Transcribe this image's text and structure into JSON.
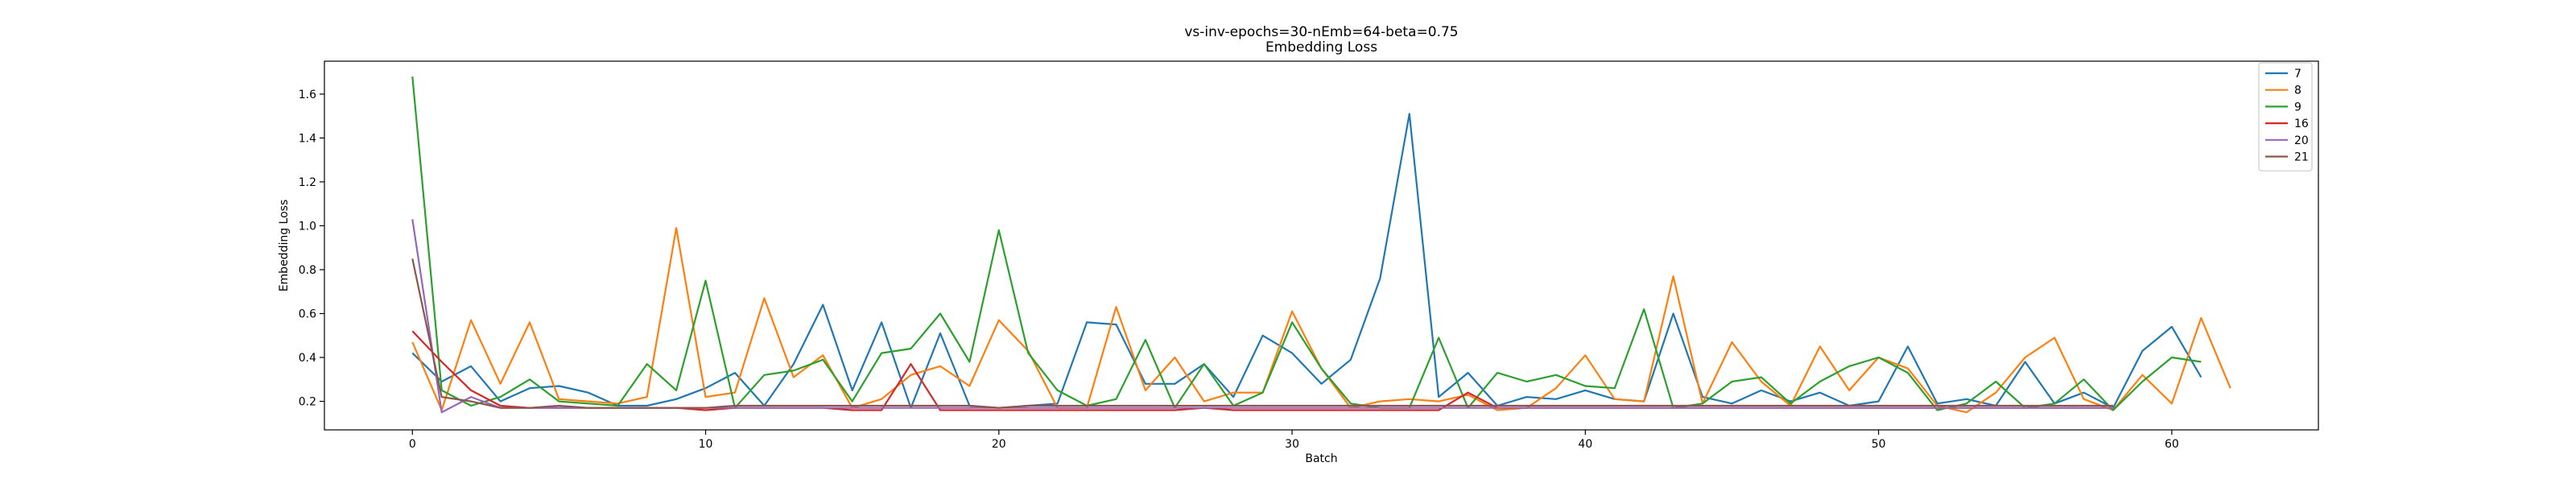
{
  "chart_data": {
    "type": "line",
    "title": "vs-inv-epochs=30-nEmb=64-beta=0.75",
    "subtitle": "Embedding Loss",
    "xlabel": "Batch",
    "ylabel": "Embedding Loss",
    "xlim": [
      -3,
      65
    ],
    "ylim": [
      0.07,
      1.75
    ],
    "xticks": [
      0,
      10,
      20,
      30,
      40,
      50,
      60
    ],
    "yticks": [
      0.2,
      0.4,
      0.6,
      0.8,
      1.0,
      1.2,
      1.4,
      1.6
    ],
    "ytick_labels": [
      "0.2",
      "0.4",
      "0.6",
      "0.8",
      "1.0",
      "1.2",
      "1.4",
      "1.6"
    ],
    "legend_position": "top-right",
    "grid": false,
    "series": [
      {
        "name": "7",
        "color": "#1f77b4",
        "values": [
          0.42,
          0.29,
          0.36,
          0.2,
          0.26,
          0.27,
          0.24,
          0.18,
          0.18,
          0.21,
          0.26,
          0.33,
          0.18,
          0.37,
          0.64,
          0.25,
          0.56,
          0.17,
          0.51,
          0.18,
          0.17,
          0.18,
          0.19,
          0.56,
          0.55,
          0.28,
          0.28,
          0.37,
          0.22,
          0.5,
          0.42,
          0.28,
          0.39,
          0.76,
          1.51,
          0.22,
          0.33,
          0.18,
          0.22,
          0.21,
          0.25,
          0.21,
          0.2,
          0.6,
          0.22,
          0.19,
          0.25,
          0.2,
          0.24,
          0.18,
          0.2,
          0.45,
          0.19,
          0.21,
          0.18,
          0.38,
          0.19,
          0.24,
          0.17,
          0.43,
          0.54,
          0.31
        ]
      },
      {
        "name": "8",
        "color": "#ff7f0e",
        "values": [
          0.47,
          0.16,
          0.57,
          0.28,
          0.56,
          0.21,
          0.2,
          0.19,
          0.22,
          0.99,
          0.22,
          0.24,
          0.67,
          0.31,
          0.41,
          0.17,
          0.21,
          0.32,
          0.36,
          0.27,
          0.57,
          0.43,
          0.17,
          0.17,
          0.63,
          0.25,
          0.4,
          0.2,
          0.24,
          0.24,
          0.61,
          0.35,
          0.17,
          0.2,
          0.21,
          0.2,
          0.23,
          0.16,
          0.17,
          0.26,
          0.41,
          0.21,
          0.2,
          0.77,
          0.19,
          0.47,
          0.29,
          0.18,
          0.45,
          0.25,
          0.4,
          0.35,
          0.18,
          0.15,
          0.24,
          0.4,
          0.49,
          0.21,
          0.16,
          0.32,
          0.19,
          0.58,
          0.26
        ]
      },
      {
        "name": "9",
        "color": "#2ca02c",
        "values": [
          1.68,
          0.25,
          0.18,
          0.22,
          0.3,
          0.2,
          0.19,
          0.18,
          0.37,
          0.25,
          0.75,
          0.17,
          0.32,
          0.34,
          0.39,
          0.2,
          0.42,
          0.44,
          0.6,
          0.38,
          0.98,
          0.42,
          0.25,
          0.18,
          0.21,
          0.48,
          0.17,
          0.37,
          0.18,
          0.24,
          0.56,
          0.35,
          0.19,
          0.17,
          0.17,
          0.49,
          0.17,
          0.33,
          0.29,
          0.32,
          0.27,
          0.26,
          0.62,
          0.17,
          0.19,
          0.29,
          0.31,
          0.19,
          0.29,
          0.36,
          0.4,
          0.33,
          0.16,
          0.19,
          0.29,
          0.17,
          0.19,
          0.3,
          0.16,
          0.29,
          0.4,
          0.38
        ]
      },
      {
        "name": "16",
        "color": "#d62728",
        "values": [
          0.52,
          0.38,
          0.25,
          0.18,
          0.17,
          0.17,
          0.17,
          0.17,
          0.17,
          0.17,
          0.16,
          0.17,
          0.17,
          0.17,
          0.17,
          0.16,
          0.16,
          0.37,
          0.16,
          0.16,
          0.16,
          0.16,
          0.16,
          0.16,
          0.16,
          0.16,
          0.16,
          0.17,
          0.16,
          0.16,
          0.16,
          0.16,
          0.16,
          0.16,
          0.16,
          0.16,
          0.24,
          0.17,
          0.17,
          0.17,
          0.17,
          0.17,
          0.17,
          0.17,
          0.17,
          0.17,
          0.17,
          0.17,
          0.17,
          0.17,
          0.17,
          0.17,
          0.17,
          0.17,
          0.17,
          0.17,
          0.17,
          0.17,
          0.17
        ]
      },
      {
        "name": "20",
        "color": "#9467bd",
        "values": [
          1.03,
          0.15,
          0.22,
          0.17,
          0.17,
          0.17,
          0.17,
          0.17,
          0.17,
          0.17,
          0.17,
          0.17,
          0.17,
          0.17,
          0.17,
          0.17,
          0.17,
          0.17,
          0.17,
          0.17,
          0.17,
          0.17,
          0.17,
          0.17,
          0.17,
          0.17,
          0.17,
          0.17,
          0.17,
          0.17,
          0.17,
          0.17,
          0.17,
          0.17,
          0.17,
          0.17,
          0.17,
          0.17,
          0.17,
          0.17,
          0.17,
          0.17,
          0.17,
          0.17,
          0.17,
          0.17,
          0.17,
          0.17,
          0.17,
          0.17,
          0.17,
          0.17,
          0.17,
          0.17,
          0.17,
          0.17,
          0.17,
          0.17,
          0.17
        ]
      },
      {
        "name": "21",
        "color": "#8c564b",
        "values": [
          0.85,
          0.22,
          0.2,
          0.17,
          0.17,
          0.18,
          0.17,
          0.17,
          0.17,
          0.17,
          0.17,
          0.18,
          0.18,
          0.18,
          0.18,
          0.18,
          0.18,
          0.18,
          0.18,
          0.18,
          0.17,
          0.18,
          0.18,
          0.18,
          0.18,
          0.18,
          0.18,
          0.18,
          0.18,
          0.18,
          0.18,
          0.18,
          0.18,
          0.18,
          0.18,
          0.18,
          0.18,
          0.18,
          0.18,
          0.18,
          0.18,
          0.18,
          0.18,
          0.18,
          0.18,
          0.18,
          0.18,
          0.18,
          0.18,
          0.18,
          0.18,
          0.18,
          0.18,
          0.18,
          0.18,
          0.18,
          0.18,
          0.18,
          0.18
        ]
      }
    ]
  }
}
